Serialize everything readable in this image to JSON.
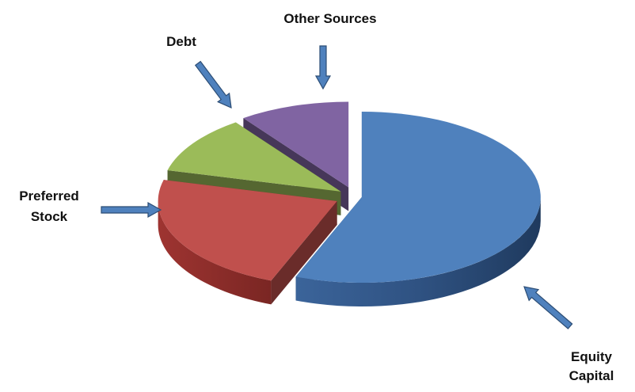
{
  "chart_data": {
    "type": "pie",
    "title": "",
    "slices": [
      {
        "label": "Equity Capital",
        "value": 56,
        "color": "#4F81BD"
      },
      {
        "label": "Preferred Stock",
        "value": 23,
        "color": "#C0504D"
      },
      {
        "label": "Debt",
        "value": 11,
        "color": "#9BBB59"
      },
      {
        "label": "Other Sources",
        "value": 10,
        "color": "#8064A2"
      }
    ],
    "legend": "none",
    "annotations": [
      {
        "label": "Other Sources",
        "lines": [
          "Other Sources"
        ],
        "arrow": "down"
      },
      {
        "label": "Debt",
        "lines": [
          "Debt"
        ],
        "arrow": "down-right"
      },
      {
        "label": "Preferred Stock",
        "lines": [
          "Preferred",
          "Stock"
        ],
        "arrow": "right"
      },
      {
        "label": "Equity Capital",
        "lines": [
          "Equity",
          "Capital"
        ],
        "arrow": "up-left"
      }
    ],
    "arrow_color": "#4F81BD"
  }
}
